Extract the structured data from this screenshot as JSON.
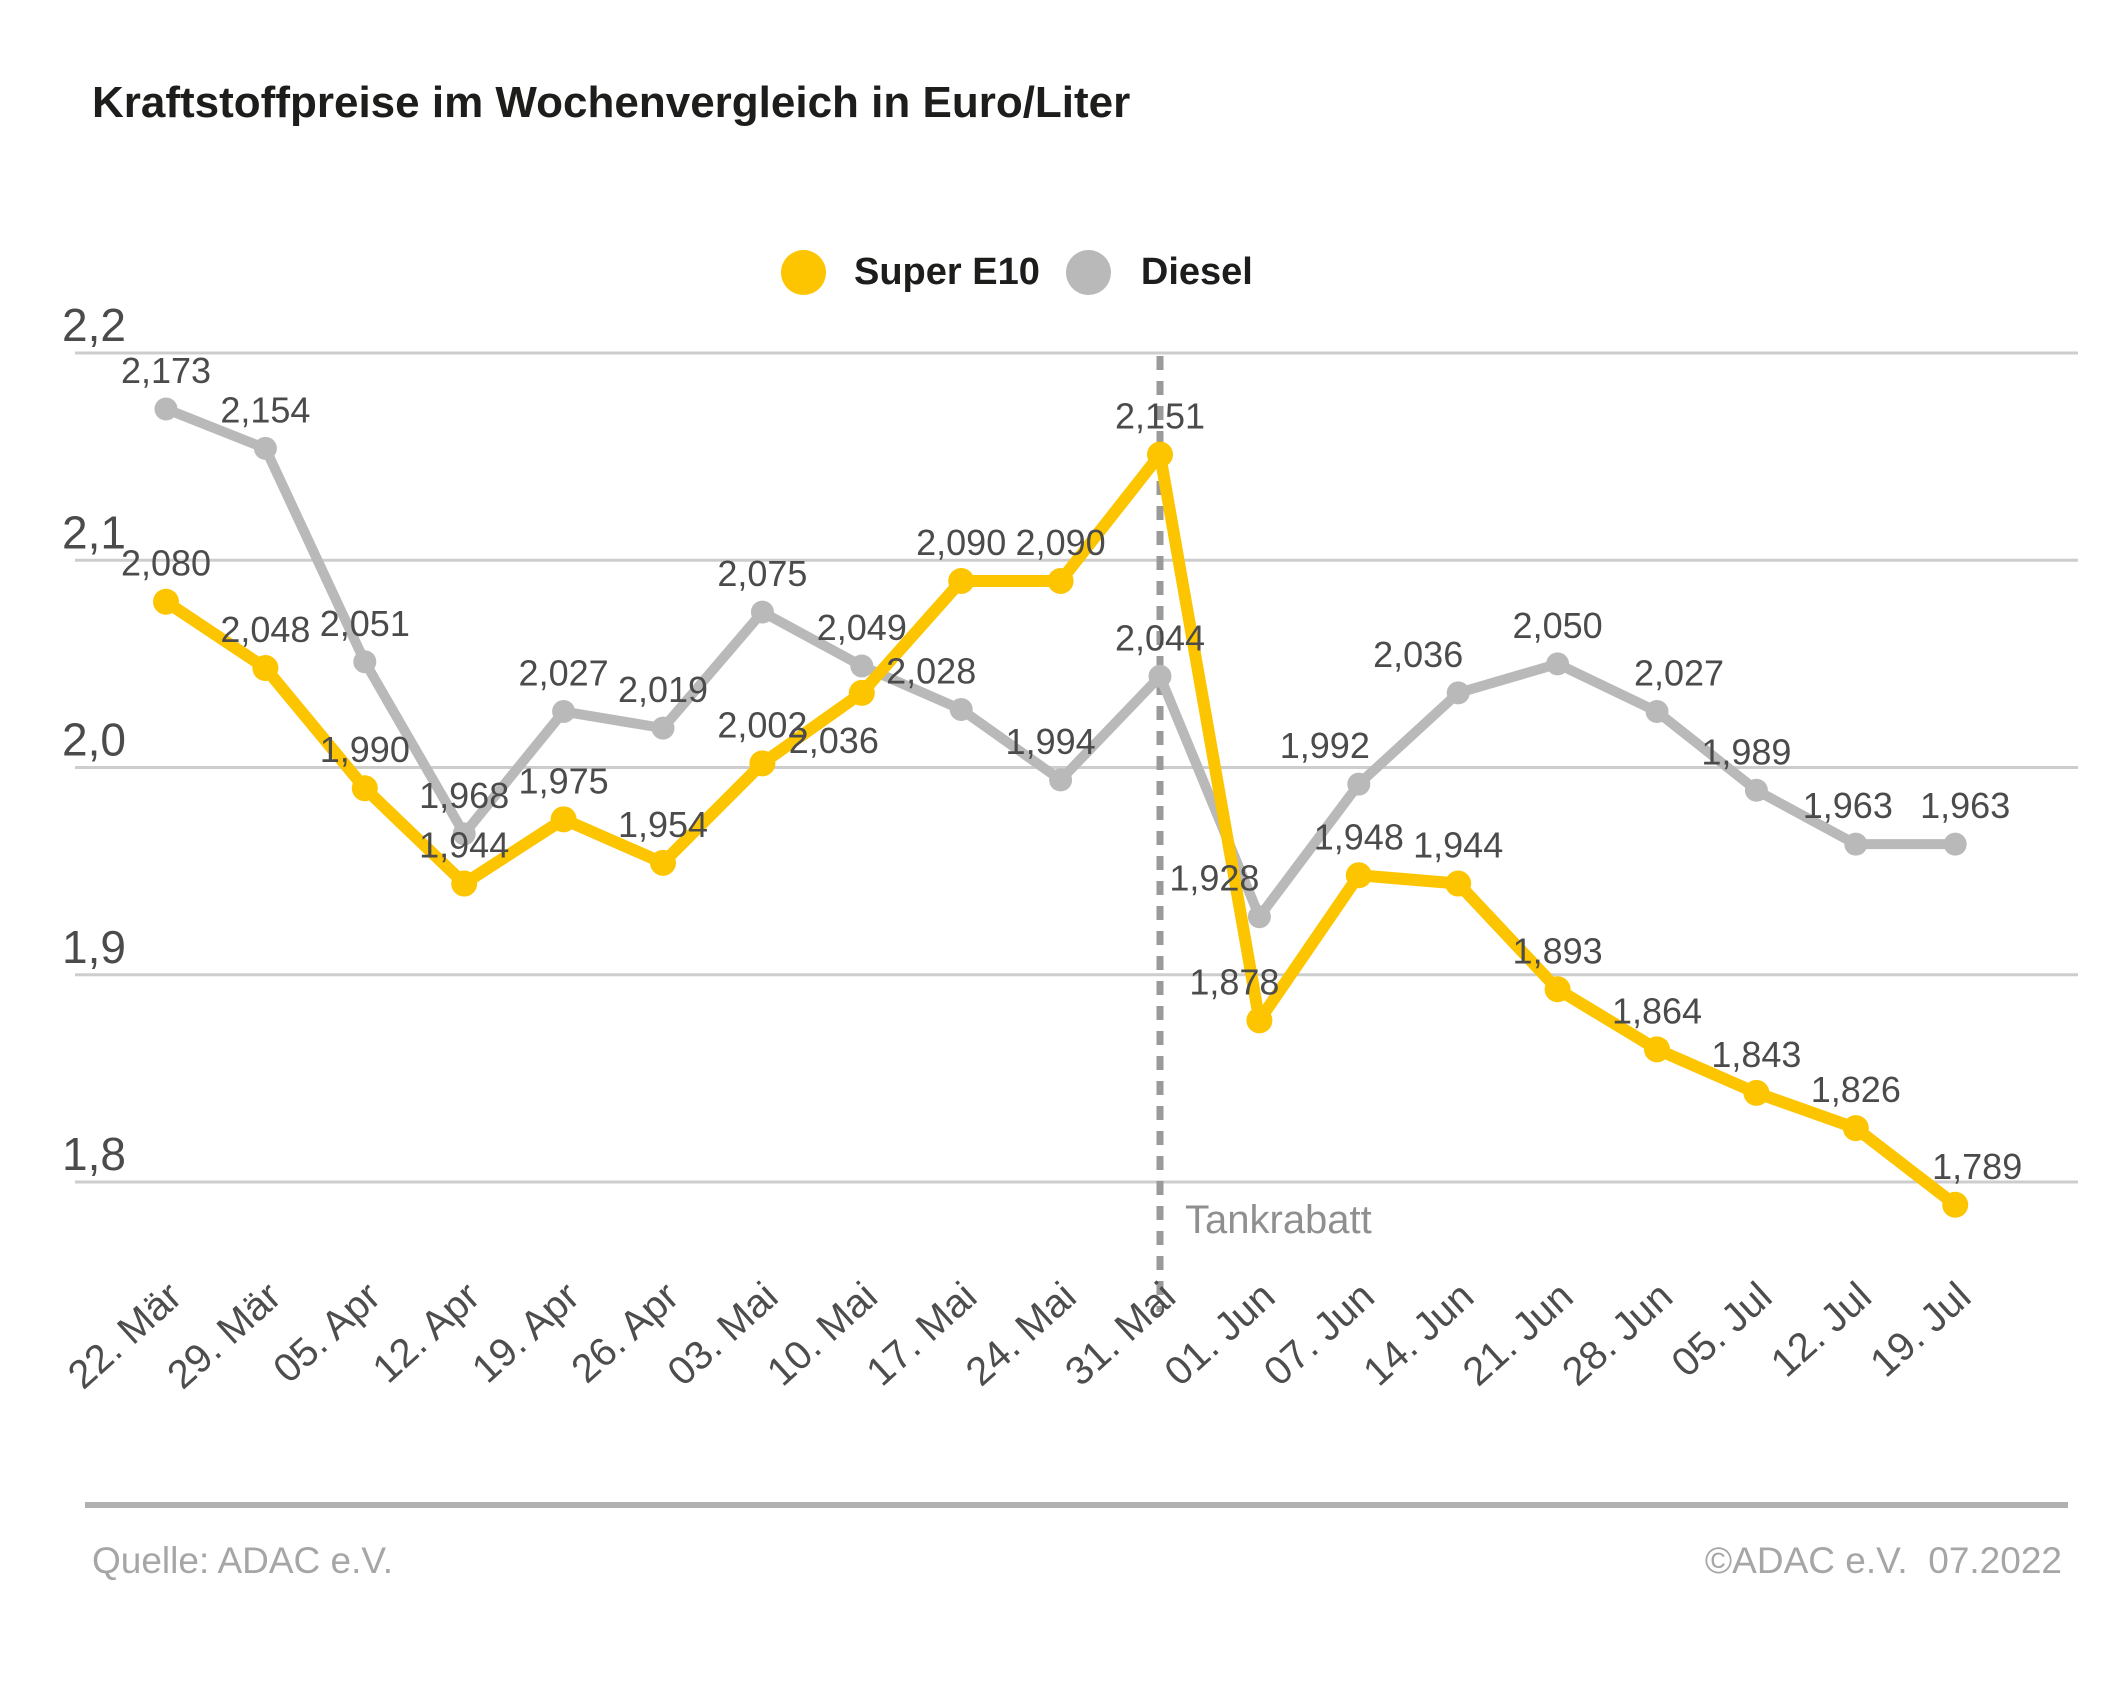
{
  "header": {
    "title": "Kraftstoffpreise im Wochenvergleich in Euro/Liter"
  },
  "legend": {
    "items": [
      {
        "label": "Super E10",
        "color": "#FCC500"
      },
      {
        "label": "Diesel",
        "color": "#B9B9B9"
      }
    ]
  },
  "chart_data": {
    "type": "line",
    "title": "Kraftstoffpreise im Wochenvergleich in Euro/Liter",
    "unit": "Euro/Liter",
    "categories": [
      "22. Mär",
      "29. Mär",
      "05. Apr",
      "12. Apr",
      "19. Apr",
      "26. Apr",
      "03. Mai",
      "10. Mai",
      "17. Mai",
      "24. Mai",
      "31. Mai",
      "01. Jun",
      "07. Jun",
      "14. Jun",
      "21. Jun",
      "28. Jun",
      "05. Jul",
      "12. Jul",
      "19. Jul"
    ],
    "series": [
      {
        "name": "Super E10",
        "color": "#FCC500",
        "values": [
          2.08,
          2.048,
          1.99,
          1.944,
          1.975,
          1.954,
          2.002,
          2.036,
          2.09,
          2.09,
          2.151,
          1.878,
          1.948,
          1.944,
          1.893,
          1.864,
          1.843,
          1.826,
          1.789
        ]
      },
      {
        "name": "Diesel",
        "color": "#B9B9B9",
        "values": [
          2.173,
          2.154,
          2.051,
          1.968,
          2.027,
          2.019,
          2.075,
          2.049,
          2.028,
          1.994,
          2.044,
          1.928,
          1.992,
          2.036,
          2.05,
          2.027,
          1.989,
          1.963,
          1.963
        ]
      }
    ],
    "yticks": [
      {
        "value": 2.2,
        "label": "2,2"
      },
      {
        "value": 2.1,
        "label": "2,1"
      },
      {
        "value": 2.0,
        "label": "2,0"
      },
      {
        "value": 1.9,
        "label": "1,9"
      },
      {
        "value": 1.8,
        "label": "1,8"
      }
    ],
    "ylim": [
      1.75,
      2.2
    ],
    "grid": "horizontal",
    "legend_position": "top-center",
    "decimal_separator": ",",
    "value_labels": "on",
    "annotation": {
      "label": "Tankrabatt",
      "category": "31. Mai",
      "style": "dotted-vertical-line"
    },
    "label_offsets": {
      "super_e10": [
        [
          0,
          0
        ],
        [
          0,
          0
        ],
        [
          0,
          0
        ],
        [
          0,
          0
        ],
        [
          0,
          0
        ],
        [
          0,
          0
        ],
        [
          0,
          0
        ],
        [
          -28,
          86
        ],
        [
          0,
          0
        ],
        [
          0,
          0
        ],
        [
          0,
          0
        ],
        [
          -25,
          0
        ],
        [
          0,
          0
        ],
        [
          0,
          0
        ],
        [
          0,
          0
        ],
        [
          0,
          0
        ],
        [
          0,
          0
        ],
        [
          0,
          0
        ],
        [
          22,
          0
        ]
      ],
      "diesel": [
        [
          0,
          0
        ],
        [
          0,
          0
        ],
        [
          0,
          0
        ],
        [
          0,
          0
        ],
        [
          0,
          0
        ],
        [
          0,
          0
        ],
        [
          0,
          0
        ],
        [
          0,
          0
        ],
        [
          -30,
          0
        ],
        [
          -10,
          0
        ],
        [
          0,
          0
        ],
        [
          -45,
          0
        ],
        [
          -34,
          0
        ],
        [
          -40,
          0
        ],
        [
          0,
          0
        ],
        [
          22,
          0
        ],
        [
          -10,
          0
        ],
        [
          -8,
          0
        ],
        [
          10,
          0
        ]
      ]
    }
  },
  "footer": {
    "source": "Quelle: ADAC e.V.",
    "copyright": "©ADAC e.V.  07.2022"
  },
  "colors": {
    "grid": "#CDCDCD",
    "value_label": "#4B4B4B",
    "y_axis_label": "#4B4B4B",
    "x_axis_label": "#4D4D4D",
    "annotation_line": "#9A9A9A",
    "annotation_text": "#8F8F8F",
    "title_text": "#1D1D1B",
    "footer_text": "#A6A6A6",
    "footer_divider": "#B1B1B1"
  }
}
